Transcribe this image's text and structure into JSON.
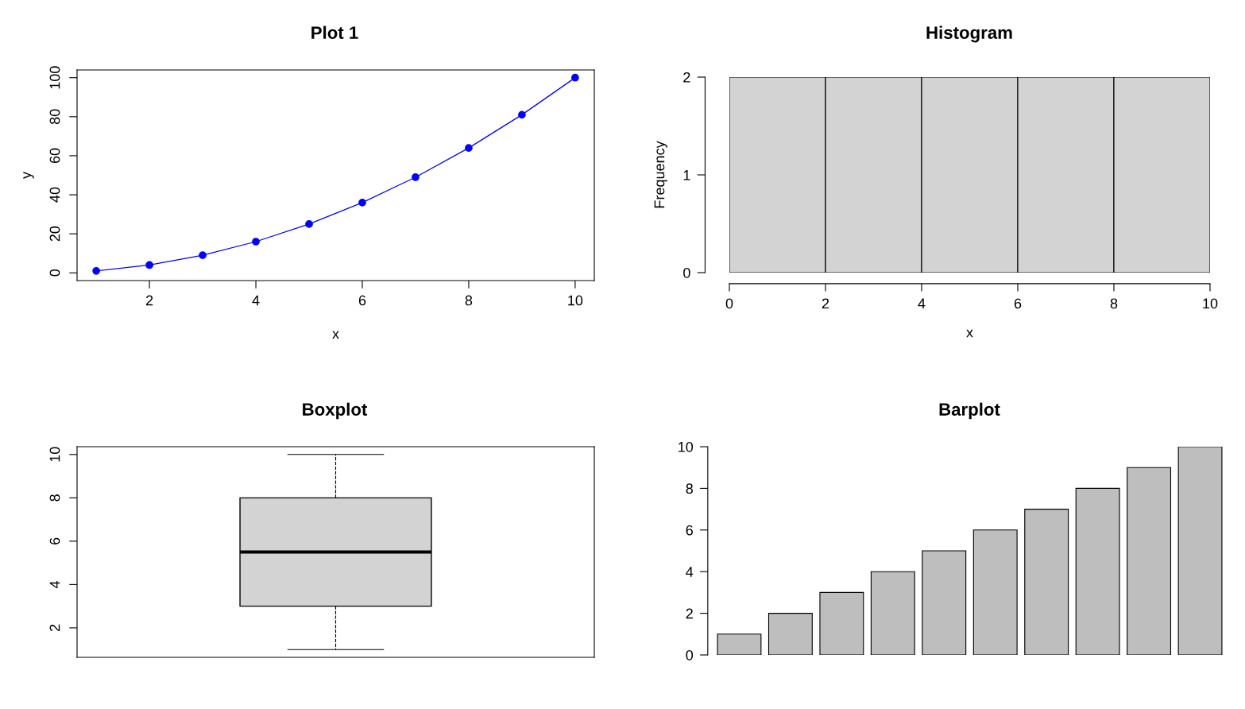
{
  "chart_data": [
    {
      "type": "line",
      "title": "Plot 1",
      "xlabel": "x",
      "ylabel": "y",
      "x": [
        1,
        2,
        3,
        4,
        5,
        6,
        7,
        8,
        9,
        10
      ],
      "series": [
        {
          "color": "#0000ff",
          "values": [
            1,
            4,
            9,
            16,
            25,
            36,
            49,
            64,
            81,
            100
          ]
        }
      ],
      "marker": "circle",
      "line_style": "solid",
      "xlim": [
        0.64,
        10.36
      ],
      "xticks": [
        2,
        4,
        6,
        8,
        10
      ],
      "ylim": [
        -3.96,
        103.96
      ],
      "yticks": [
        0,
        20,
        40,
        60,
        80,
        100
      ]
    },
    {
      "type": "histogram",
      "title": "Histogram",
      "xlabel": "x",
      "ylabel": "Frequency",
      "bins": [
        0,
        2,
        4,
        6,
        8,
        10
      ],
      "values": [
        2,
        2,
        2,
        2,
        2
      ],
      "color": "#d3d3d3",
      "xlim": [
        0,
        10
      ],
      "xticks": [
        0,
        2,
        4,
        6,
        8,
        10
      ],
      "ylim": [
        0,
        2
      ],
      "yticks": [
        0,
        1,
        2
      ]
    },
    {
      "type": "box",
      "title": "Boxplot",
      "categories": [
        null
      ],
      "boxes": [
        {
          "low": 1,
          "q1": 3,
          "median": 5.5,
          "q3": 8,
          "high": 10
        }
      ],
      "color": "#d3d3d3",
      "ylim": [
        0.64,
        10.36
      ],
      "yticks": [
        2,
        4,
        6,
        8,
        10
      ],
      "tick_labels": "y"
    },
    {
      "type": "bar",
      "title": "Barplot",
      "categories": [
        null,
        null,
        null,
        null,
        null,
        null,
        null,
        null,
        null,
        null
      ],
      "values": [
        1,
        2,
        3,
        4,
        5,
        6,
        7,
        8,
        9,
        10
      ],
      "color": "#bebebe",
      "ylim": [
        0,
        10
      ],
      "yticks": [
        0,
        2,
        4,
        6,
        8,
        10
      ],
      "tick_labels": "y"
    }
  ]
}
